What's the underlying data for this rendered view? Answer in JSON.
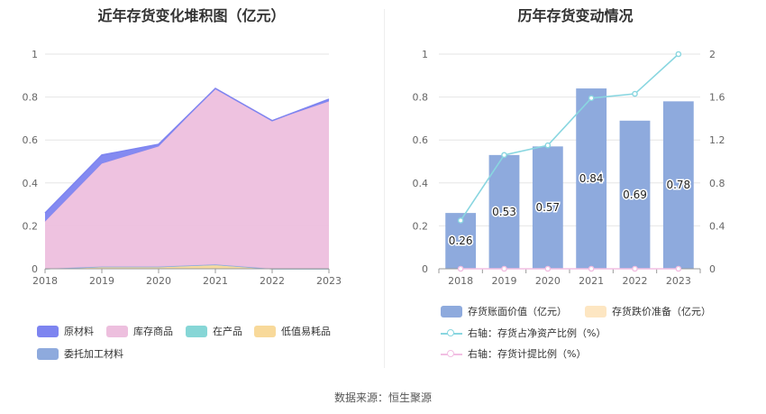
{
  "left_chart": {
    "title": "近年存货变化堆积图（亿元）",
    "legend": [
      {
        "label": "原材料",
        "color": "#7d84f0"
      },
      {
        "label": "库存商品",
        "color": "#edbfde"
      },
      {
        "label": "在产品",
        "color": "#86d6d6"
      },
      {
        "label": "低值易耗品",
        "color": "#f8d99a"
      },
      {
        "label": "委托加工材料",
        "color": "#8eaadd"
      }
    ]
  },
  "right_chart": {
    "title": "历年存货变动情况",
    "legend": [
      {
        "label": "存货账面价值（亿元）",
        "color": "#8eaadd"
      },
      {
        "label": "存货跌价准备（亿元）",
        "color": "#fde6c2"
      },
      {
        "label": "右轴：存货占净资产比例（%）",
        "color": "#89d6e0"
      },
      {
        "label": "右轴：存货计提比例（%）",
        "color": "#f2bfe3"
      }
    ]
  },
  "source": "数据来源：恒生聚源",
  "chart_data": [
    {
      "type": "area",
      "stacked": true,
      "title": "近年存货变化堆积图（亿元）",
      "x": [
        "2018",
        "2019",
        "2020",
        "2021",
        "2022",
        "2023"
      ],
      "ylim": [
        0,
        1
      ],
      "yticks": [
        "0",
        "0.2",
        "0.4",
        "0.6",
        "0.8",
        "1"
      ],
      "series": [
        {
          "name": "低值易耗品",
          "color": "#f8d99a",
          "values": [
            0.0,
            0.01,
            0.01,
            0.02,
            0.0,
            0.0
          ]
        },
        {
          "name": "在产品",
          "color": "#86d6d6",
          "values": [
            0.0,
            0.0,
            0.0,
            0.0,
            0.0,
            0.0
          ]
        },
        {
          "name": "委托加工材料",
          "color": "#8eaadd",
          "values": [
            0.0,
            0.0,
            0.0,
            0.0,
            0.0,
            0.0
          ]
        },
        {
          "name": "库存商品",
          "color": "#edbfde",
          "values": [
            0.22,
            0.48,
            0.56,
            0.82,
            0.69,
            0.78
          ]
        },
        {
          "name": "原材料",
          "color": "#7d84f0",
          "values": [
            0.04,
            0.04,
            0.01,
            0.0,
            0.0,
            0.01
          ]
        }
      ],
      "grid": true,
      "legend_position": "bottom"
    },
    {
      "type": "bar",
      "title": "历年存货变动情况",
      "categories": [
        "2018",
        "2019",
        "2020",
        "2021",
        "2022",
        "2023"
      ],
      "ylim": [
        0,
        1
      ],
      "yticks": [
        "0",
        "0.2",
        "0.4",
        "0.6",
        "0.8",
        "1"
      ],
      "y2lim": [
        0,
        2
      ],
      "y2ticks": [
        "0",
        "0.4",
        "0.8",
        "1.2",
        "1.6",
        "2"
      ],
      "series": [
        {
          "name": "存货账面价值（亿元）",
          "type": "bar",
          "axis": "left",
          "color": "#8eaadd",
          "values": [
            0.26,
            0.53,
            0.57,
            0.84,
            0.69,
            0.78
          ],
          "labels": [
            "0.26",
            "0.53",
            "0.57",
            "0.84",
            "0.69",
            "0.78"
          ]
        },
        {
          "name": "存货跌价准备（亿元）",
          "type": "bar",
          "axis": "left",
          "color": "#fde6c2",
          "values": [
            0,
            0,
            0,
            0,
            0,
            0
          ]
        },
        {
          "name": "右轴：存货占净资产比例（%）",
          "type": "line",
          "axis": "right",
          "color": "#89d6e0",
          "values": [
            0.45,
            1.06,
            1.15,
            1.59,
            1.63,
            2.0
          ]
        },
        {
          "name": "右轴：存货计提比例（%）",
          "type": "line",
          "axis": "right",
          "color": "#f2bfe3",
          "values": [
            0,
            0,
            0,
            0,
            0,
            0
          ]
        }
      ],
      "grid": true,
      "legend_position": "bottom"
    }
  ]
}
